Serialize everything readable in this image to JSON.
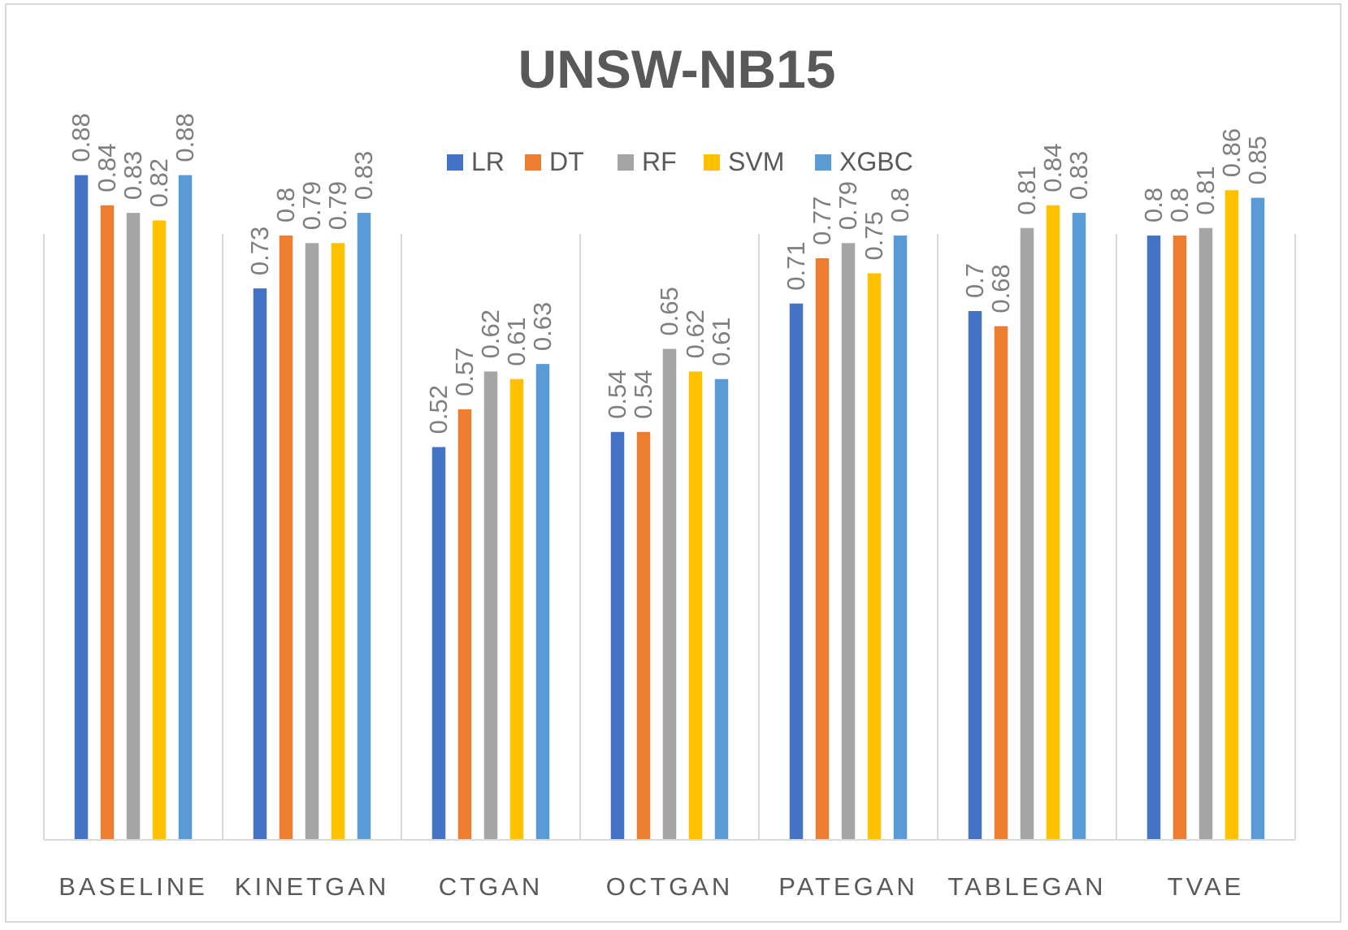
{
  "chart_data": {
    "type": "bar",
    "title": "UNSW-NB15",
    "xlabel": "",
    "ylabel": "",
    "ylim": [
      0,
      1
    ],
    "grid": "vertical category separators",
    "legend_position": "top",
    "categories": [
      "BASELINE",
      "KINETGAN",
      "CTGAN",
      "OCTGAN",
      "PATEGAN",
      "TABLEGAN",
      "TVAE"
    ],
    "series": [
      {
        "name": "LR",
        "color": "#4472c4",
        "values": [
          0.88,
          0.73,
          0.52,
          0.54,
          0.71,
          0.7,
          0.8
        ],
        "labels": [
          "0.88",
          "0.73",
          "0.52",
          "0.54",
          "0.71",
          "0.7",
          "0.8"
        ]
      },
      {
        "name": "DT",
        "color": "#ed7d31",
        "values": [
          0.84,
          0.8,
          0.57,
          0.54,
          0.77,
          0.68,
          0.8
        ],
        "labels": [
          "0.84",
          "0.8",
          "0.57",
          "0.54",
          "0.77",
          "0.68",
          "0.8"
        ]
      },
      {
        "name": "RF",
        "color": "#a5a5a5",
        "values": [
          0.83,
          0.79,
          0.62,
          0.65,
          0.79,
          0.81,
          0.81
        ],
        "labels": [
          "0.83",
          "0.79",
          "0.62",
          "0.65",
          "0.79",
          "0.81",
          "0.81"
        ]
      },
      {
        "name": "SVM",
        "color": "#ffc000",
        "values": [
          0.82,
          0.79,
          0.61,
          0.62,
          0.75,
          0.84,
          0.86
        ],
        "labels": [
          "0.82",
          "0.79",
          "0.61",
          "0.62",
          "0.75",
          "0.84",
          "0.86"
        ]
      },
      {
        "name": "XGBC",
        "color": "#5b9bd5",
        "values": [
          0.88,
          0.83,
          0.63,
          0.61,
          0.8,
          0.83,
          0.85
        ],
        "labels": [
          "0.88",
          "0.83",
          "0.63",
          "0.61",
          "0.8",
          "0.83",
          "0.85"
        ]
      }
    ]
  }
}
